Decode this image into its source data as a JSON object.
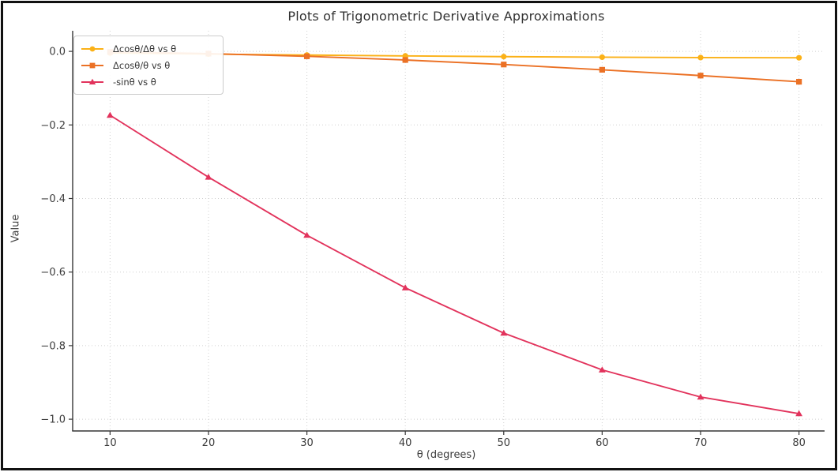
{
  "figure": {
    "title": "Plots of Trigonometric Derivative Approximations",
    "frame_color": "#111111",
    "background": "#ffffff"
  },
  "chart_data": {
    "type": "line",
    "title": "Plots of Trigonometric Derivative Approximations",
    "xlabel": "θ (degrees)",
    "ylabel": "Value",
    "x": [
      10,
      20,
      30,
      40,
      50,
      60,
      70,
      80
    ],
    "series": [
      {
        "name": "Δcosθ/Δθ vs θ",
        "marker": "circle",
        "color": "#FBB117",
        "values": [
          -0.0045,
          -0.0074,
          -0.01,
          -0.0123,
          -0.0143,
          -0.0158,
          -0.0168,
          -0.0174
        ]
      },
      {
        "name": "Δcosθ/θ vs θ",
        "marker": "square",
        "color": "#EB7125",
        "values": [
          -0.0015,
          -0.006,
          -0.0134,
          -0.0234,
          -0.0357,
          -0.05,
          -0.0658,
          -0.0826
        ]
      },
      {
        "name": "-sinθ vs θ",
        "marker": "triangle",
        "color": "#E2335C",
        "values": [
          -0.1736,
          -0.342,
          -0.5,
          -0.6428,
          -0.766,
          -0.866,
          -0.9397,
          -0.9848
        ]
      }
    ],
    "xticks": [
      10,
      20,
      30,
      40,
      50,
      60,
      70,
      80
    ],
    "xtick_labels": [
      "10",
      "20",
      "30",
      "40",
      "50",
      "60",
      "70",
      "80"
    ],
    "yticks": [
      0.0,
      -0.2,
      -0.4,
      -0.6,
      -0.8,
      -1.0
    ],
    "ytick_labels": [
      "0.0",
      "−0.2",
      "−0.4",
      "−0.6",
      "−0.8",
      "−1.0"
    ],
    "xlim": [
      6.2,
      82.6
    ],
    "ylim": [
      -1.032,
      0.056
    ],
    "grid": "dotted",
    "grid_color": "#d0d0d0",
    "spine_color": "#363636",
    "legend_position": "upper-left"
  }
}
